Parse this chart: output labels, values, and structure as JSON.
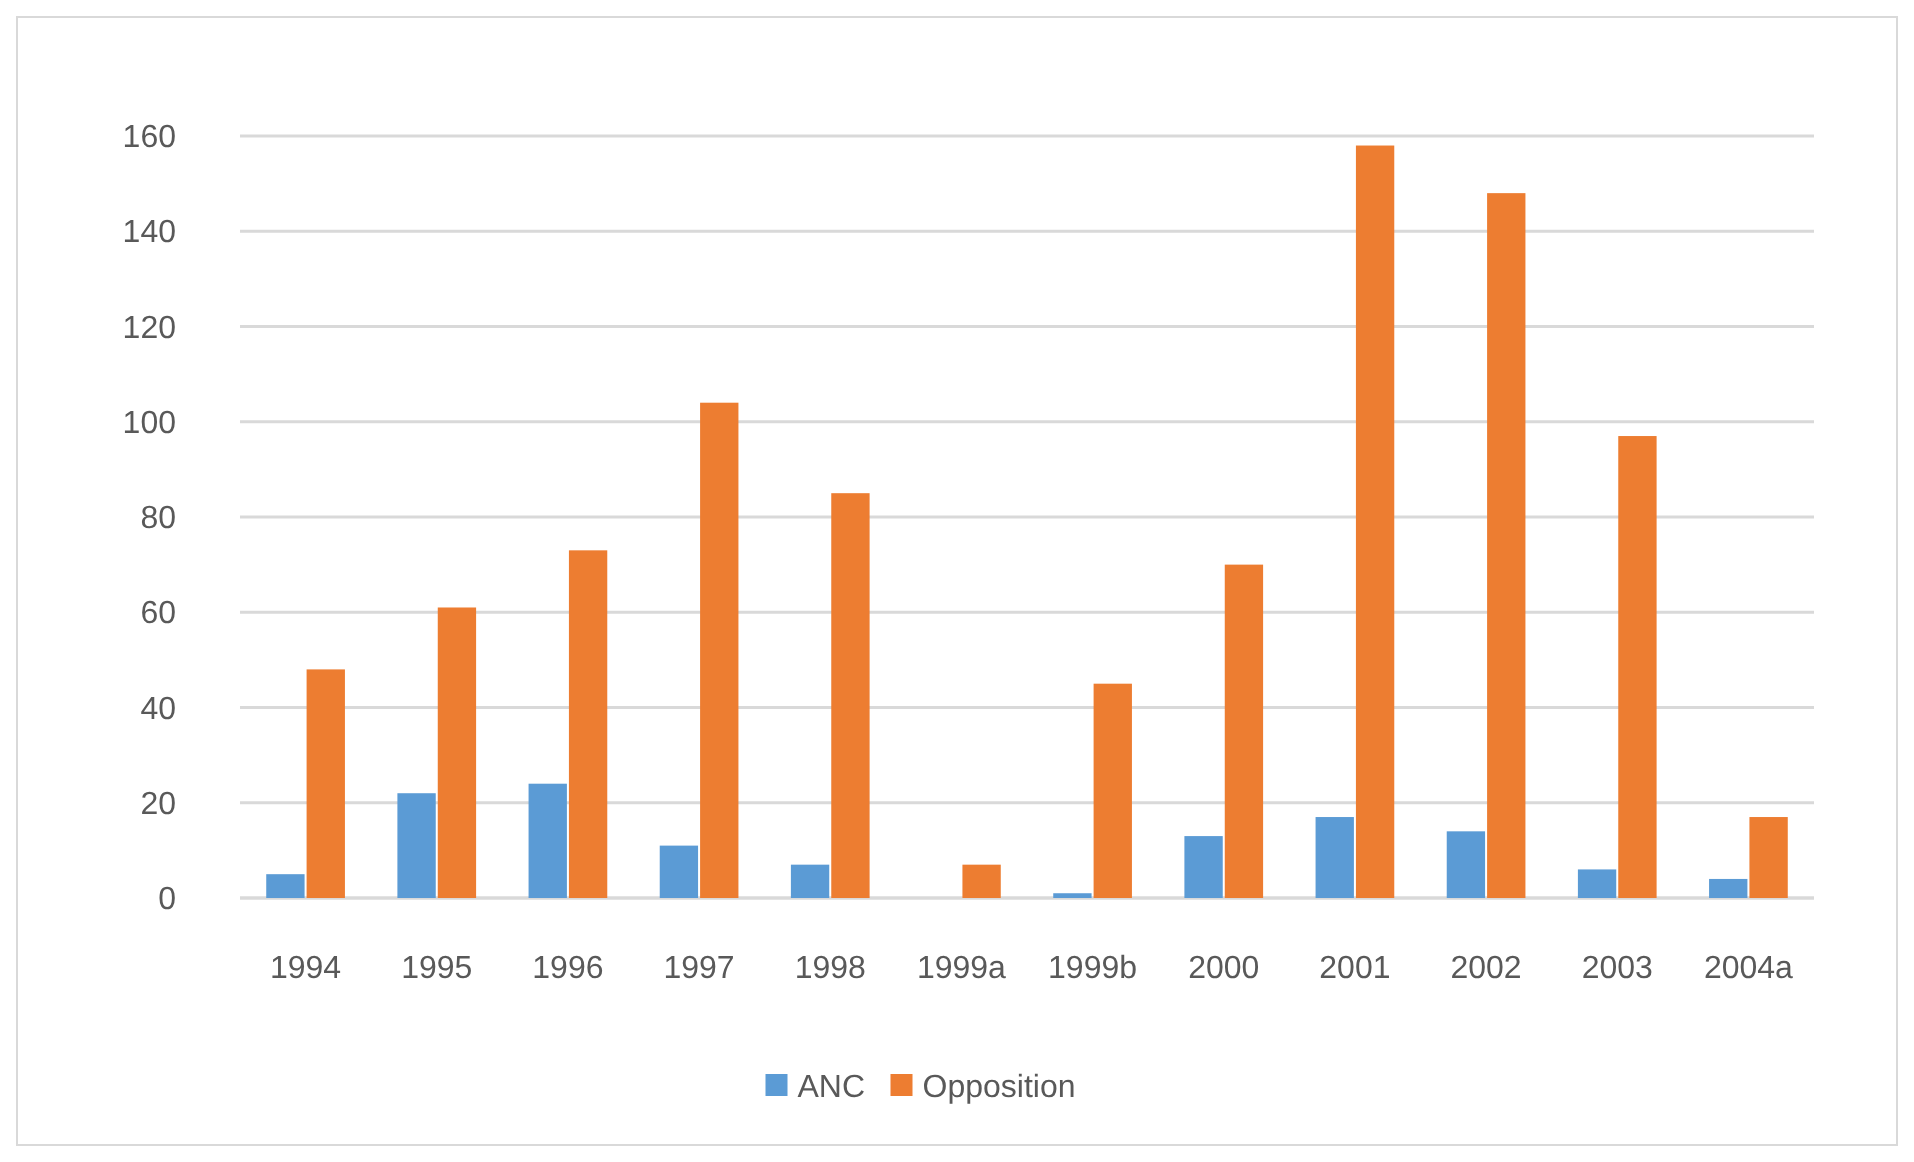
{
  "chart_data": {
    "type": "bar",
    "categories": [
      "1994",
      "1995",
      "1996",
      "1997",
      "1998",
      "1999a",
      "1999b",
      "2000",
      "2001",
      "2002",
      "2003",
      "2004a"
    ],
    "series": [
      {
        "name": "ANC",
        "color": "#5b9bd5",
        "values": [
          5,
          22,
          24,
          11,
          7,
          0,
          1,
          13,
          17,
          14,
          6,
          4
        ]
      },
      {
        "name": "Opposition",
        "color": "#ed7d31",
        "values": [
          48,
          61,
          73,
          104,
          85,
          7,
          45,
          70,
          158,
          148,
          97,
          17
        ]
      }
    ],
    "ylim": [
      0,
      160
    ],
    "yticks": [
      0,
      20,
      40,
      60,
      80,
      100,
      120,
      140,
      160
    ],
    "grid": "y",
    "legend": "bottom"
  }
}
